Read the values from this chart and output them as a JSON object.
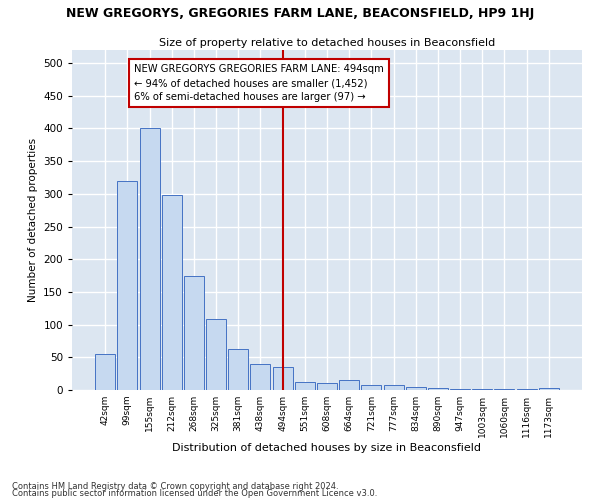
{
  "title": "NEW GREGORYS, GREGORIES FARM LANE, BEACONSFIELD, HP9 1HJ",
  "subtitle": "Size of property relative to detached houses in Beaconsfield",
  "xlabel": "Distribution of detached houses by size in Beaconsfield",
  "ylabel": "Number of detached properties",
  "footnote1": "Contains HM Land Registry data © Crown copyright and database right 2024.",
  "footnote2": "Contains public sector information licensed under the Open Government Licence v3.0.",
  "bar_labels": [
    "42sqm",
    "99sqm",
    "155sqm",
    "212sqm",
    "268sqm",
    "325sqm",
    "381sqm",
    "438sqm",
    "494sqm",
    "551sqm",
    "608sqm",
    "664sqm",
    "721sqm",
    "777sqm",
    "834sqm",
    "890sqm",
    "947sqm",
    "1003sqm",
    "1060sqm",
    "1116sqm",
    "1173sqm"
  ],
  "bar_values": [
    55,
    320,
    400,
    298,
    175,
    108,
    62,
    40,
    35,
    12,
    10,
    15,
    8,
    7,
    4,
    3,
    2,
    2,
    1,
    1,
    3
  ],
  "bar_color": "#c6d9f0",
  "bar_edge_color": "#4472c4",
  "vline_x_index": 8,
  "vline_color": "#c00000",
  "annotation_text": "NEW GREGORYS GREGORIES FARM LANE: 494sqm\n← 94% of detached houses are smaller (1,452)\n6% of semi-detached houses are larger (97) →",
  "annotation_box_edge_color": "#c00000",
  "fig_background_color": "#ffffff",
  "axes_background_color": "#dce6f1",
  "grid_color": "#ffffff",
  "ylim": [
    0,
    520
  ],
  "yticks": [
    0,
    50,
    100,
    150,
    200,
    250,
    300,
    350,
    400,
    450,
    500
  ]
}
